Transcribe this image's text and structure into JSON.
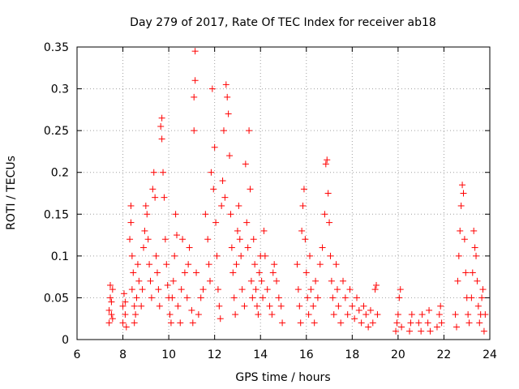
{
  "chart_data": {
    "type": "scatter",
    "title": "Day 279 of 2017, Rate Of TEC Index for receiver ab18",
    "xlabel": "GPS time / hours",
    "ylabel": "ROTI / TECUs",
    "xlim": [
      6,
      24
    ],
    "ylim": [
      0,
      0.35
    ],
    "xticks": [
      "6",
      "8",
      "10",
      "12",
      "14",
      "16",
      "18",
      "20",
      "22",
      "24"
    ],
    "yticks": [
      "0",
      "0.05",
      "0.1",
      "0.15",
      "0.2",
      "0.25",
      "0.3",
      "0.35"
    ],
    "grid": true,
    "marker": "+",
    "color": "#ff0000",
    "series": [
      {
        "name": "ab18",
        "points": [
          [
            7.4,
            0.02
          ],
          [
            7.4,
            0.035
          ],
          [
            7.45,
            0.05
          ],
          [
            7.45,
            0.065
          ],
          [
            7.5,
            0.03
          ],
          [
            7.5,
            0.045
          ],
          [
            7.55,
            0.025
          ],
          [
            7.55,
            0.06
          ],
          [
            8.0,
            0.02
          ],
          [
            8.0,
            0.04
          ],
          [
            8.05,
            0.055
          ],
          [
            8.1,
            0.03
          ],
          [
            8.1,
            0.045
          ],
          [
            8.15,
            0.015
          ],
          [
            8.3,
            0.12
          ],
          [
            8.35,
            0.16
          ],
          [
            8.35,
            0.14
          ],
          [
            8.4,
            0.1
          ],
          [
            8.4,
            0.06
          ],
          [
            8.45,
            0.08
          ],
          [
            8.5,
            0.04
          ],
          [
            8.5,
            0.02
          ],
          [
            8.55,
            0.03
          ],
          [
            8.6,
            0.05
          ],
          [
            8.65,
            0.09
          ],
          [
            8.7,
            0.07
          ],
          [
            8.8,
            0.04
          ],
          [
            8.85,
            0.06
          ],
          [
            8.9,
            0.11
          ],
          [
            8.95,
            0.13
          ],
          [
            9.0,
            0.16
          ],
          [
            9.05,
            0.15
          ],
          [
            9.1,
            0.12
          ],
          [
            9.15,
            0.09
          ],
          [
            9.2,
            0.07
          ],
          [
            9.25,
            0.05
          ],
          [
            9.3,
            0.18
          ],
          [
            9.35,
            0.2
          ],
          [
            9.4,
            0.17
          ],
          [
            9.45,
            0.1
          ],
          [
            9.5,
            0.08
          ],
          [
            9.55,
            0.06
          ],
          [
            9.6,
            0.04
          ],
          [
            9.65,
            0.255
          ],
          [
            9.7,
            0.265
          ],
          [
            9.7,
            0.24
          ],
          [
            9.75,
            0.2
          ],
          [
            9.8,
            0.17
          ],
          [
            9.85,
            0.12
          ],
          [
            9.9,
            0.09
          ],
          [
            9.95,
            0.065
          ],
          [
            10.0,
            0.05
          ],
          [
            10.05,
            0.03
          ],
          [
            10.1,
            0.02
          ],
          [
            10.15,
            0.05
          ],
          [
            10.2,
            0.07
          ],
          [
            10.25,
            0.1
          ],
          [
            10.3,
            0.15
          ],
          [
            10.35,
            0.125
          ],
          [
            10.4,
            0.04
          ],
          [
            10.5,
            0.02
          ],
          [
            10.55,
            0.06
          ],
          [
            10.6,
            0.12
          ],
          [
            10.7,
            0.08
          ],
          [
            10.8,
            0.05
          ],
          [
            10.85,
            0.09
          ],
          [
            10.9,
            0.11
          ],
          [
            11.0,
            0.035
          ],
          [
            11.05,
            0.02
          ],
          [
            11.1,
            0.25
          ],
          [
            11.1,
            0.29
          ],
          [
            11.15,
            0.31
          ],
          [
            11.15,
            0.345
          ],
          [
            11.2,
            0.08
          ],
          [
            11.3,
            0.03
          ],
          [
            11.4,
            0.05
          ],
          [
            11.5,
            0.06
          ],
          [
            11.6,
            0.15
          ],
          [
            11.7,
            0.12
          ],
          [
            11.75,
            0.09
          ],
          [
            11.8,
            0.07
          ],
          [
            11.85,
            0.2
          ],
          [
            11.9,
            0.3
          ],
          [
            11.95,
            0.18
          ],
          [
            12.0,
            0.23
          ],
          [
            12.05,
            0.14
          ],
          [
            12.1,
            0.1
          ],
          [
            12.15,
            0.06
          ],
          [
            12.2,
            0.04
          ],
          [
            12.25,
            0.025
          ],
          [
            12.3,
            0.16
          ],
          [
            12.35,
            0.19
          ],
          [
            12.4,
            0.25
          ],
          [
            12.45,
            0.17
          ],
          [
            12.5,
            0.305
          ],
          [
            12.55,
            0.29
          ],
          [
            12.6,
            0.27
          ],
          [
            12.65,
            0.22
          ],
          [
            12.7,
            0.15
          ],
          [
            12.75,
            0.11
          ],
          [
            12.8,
            0.08
          ],
          [
            12.85,
            0.05
          ],
          [
            12.9,
            0.03
          ],
          [
            12.95,
            0.09
          ],
          [
            13.0,
            0.13
          ],
          [
            13.05,
            0.16
          ],
          [
            13.1,
            0.12
          ],
          [
            13.15,
            0.1
          ],
          [
            13.2,
            0.06
          ],
          [
            13.3,
            0.04
          ],
          [
            13.35,
            0.21
          ],
          [
            13.4,
            0.14
          ],
          [
            13.45,
            0.11
          ],
          [
            13.5,
            0.25
          ],
          [
            13.55,
            0.18
          ],
          [
            13.6,
            0.07
          ],
          [
            13.65,
            0.05
          ],
          [
            13.7,
            0.12
          ],
          [
            13.75,
            0.09
          ],
          [
            13.8,
            0.06
          ],
          [
            13.85,
            0.04
          ],
          [
            13.9,
            0.03
          ],
          [
            13.95,
            0.08
          ],
          [
            14.0,
            0.1
          ],
          [
            14.05,
            0.07
          ],
          [
            14.1,
            0.05
          ],
          [
            14.15,
            0.13
          ],
          [
            14.2,
            0.1
          ],
          [
            14.3,
            0.06
          ],
          [
            14.4,
            0.04
          ],
          [
            14.5,
            0.03
          ],
          [
            14.55,
            0.08
          ],
          [
            14.6,
            0.09
          ],
          [
            14.7,
            0.07
          ],
          [
            14.8,
            0.05
          ],
          [
            14.9,
            0.04
          ],
          [
            14.95,
            0.02
          ],
          [
            15.6,
            0.09
          ],
          [
            15.65,
            0.06
          ],
          [
            15.7,
            0.04
          ],
          [
            15.75,
            0.02
          ],
          [
            15.8,
            0.13
          ],
          [
            15.85,
            0.16
          ],
          [
            15.9,
            0.18
          ],
          [
            15.95,
            0.12
          ],
          [
            16.0,
            0.08
          ],
          [
            16.05,
            0.05
          ],
          [
            16.1,
            0.03
          ],
          [
            16.15,
            0.1
          ],
          [
            16.2,
            0.06
          ],
          [
            16.3,
            0.04
          ],
          [
            16.35,
            0.02
          ],
          [
            16.4,
            0.07
          ],
          [
            16.5,
            0.05
          ],
          [
            16.6,
            0.09
          ],
          [
            16.7,
            0.11
          ],
          [
            16.8,
            0.15
          ],
          [
            16.85,
            0.21
          ],
          [
            16.9,
            0.215
          ],
          [
            16.95,
            0.175
          ],
          [
            17.0,
            0.14
          ],
          [
            17.05,
            0.1
          ],
          [
            17.1,
            0.07
          ],
          [
            17.15,
            0.05
          ],
          [
            17.2,
            0.03
          ],
          [
            17.3,
            0.09
          ],
          [
            17.35,
            0.06
          ],
          [
            17.4,
            0.04
          ],
          [
            17.5,
            0.02
          ],
          [
            17.6,
            0.07
          ],
          [
            17.7,
            0.05
          ],
          [
            17.8,
            0.03
          ],
          [
            17.9,
            0.06
          ],
          [
            18.0,
            0.04
          ],
          [
            18.1,
            0.025
          ],
          [
            18.2,
            0.05
          ],
          [
            18.3,
            0.035
          ],
          [
            18.4,
            0.02
          ],
          [
            18.5,
            0.04
          ],
          [
            18.6,
            0.03
          ],
          [
            18.7,
            0.015
          ],
          [
            18.8,
            0.035
          ],
          [
            18.9,
            0.02
          ],
          [
            19.0,
            0.06
          ],
          [
            19.05,
            0.065
          ],
          [
            19.1,
            0.03
          ],
          [
            19.9,
            0.01
          ],
          [
            19.95,
            0.02
          ],
          [
            20.0,
            0.03
          ],
          [
            20.05,
            0.05
          ],
          [
            20.1,
            0.06
          ],
          [
            20.15,
            0.015
          ],
          [
            20.5,
            0.01
          ],
          [
            20.55,
            0.02
          ],
          [
            20.6,
            0.03
          ],
          [
            20.9,
            0.02
          ],
          [
            21.0,
            0.01
          ],
          [
            21.05,
            0.03
          ],
          [
            21.3,
            0.02
          ],
          [
            21.35,
            0.035
          ],
          [
            21.4,
            0.01
          ],
          [
            21.7,
            0.015
          ],
          [
            21.8,
            0.03
          ],
          [
            21.85,
            0.04
          ],
          [
            21.9,
            0.02
          ],
          [
            22.5,
            0.03
          ],
          [
            22.55,
            0.015
          ],
          [
            22.6,
            0.07
          ],
          [
            22.65,
            0.1
          ],
          [
            22.7,
            0.13
          ],
          [
            22.75,
            0.16
          ],
          [
            22.8,
            0.185
          ],
          [
            22.85,
            0.175
          ],
          [
            22.9,
            0.12
          ],
          [
            22.95,
            0.08
          ],
          [
            23.0,
            0.05
          ],
          [
            23.05,
            0.03
          ],
          [
            23.1,
            0.02
          ],
          [
            23.2,
            0.05
          ],
          [
            23.25,
            0.08
          ],
          [
            23.3,
            0.13
          ],
          [
            23.35,
            0.11
          ],
          [
            23.4,
            0.1
          ],
          [
            23.45,
            0.07
          ],
          [
            23.5,
            0.04
          ],
          [
            23.55,
            0.02
          ],
          [
            23.6,
            0.03
          ],
          [
            23.65,
            0.05
          ],
          [
            23.7,
            0.06
          ],
          [
            23.75,
            0.01
          ],
          [
            23.8,
            0.03
          ]
        ]
      }
    ]
  }
}
